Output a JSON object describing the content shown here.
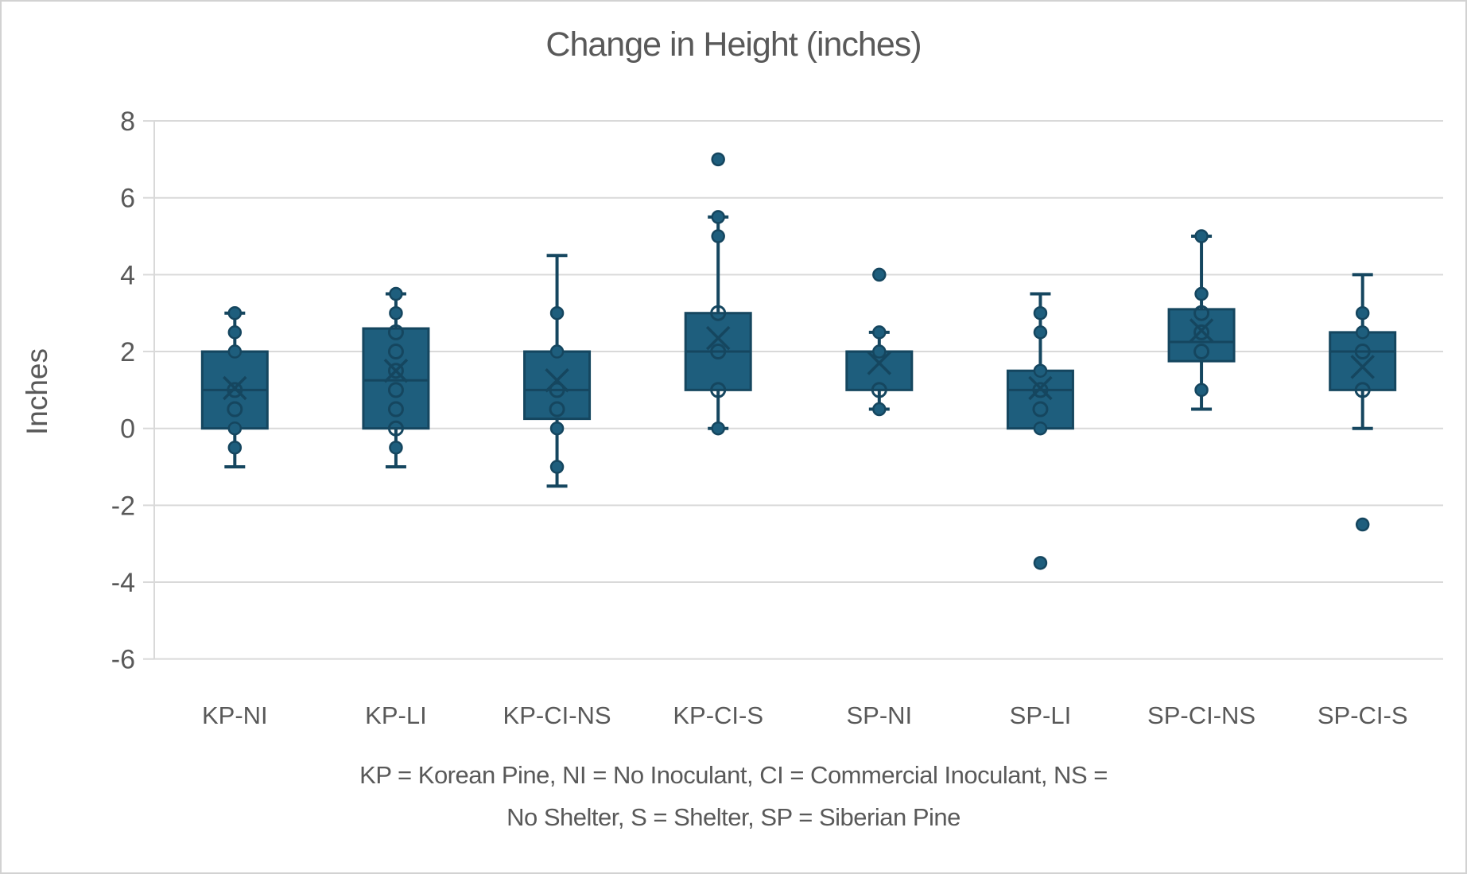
{
  "chart_data": {
    "type": "boxplot",
    "title": "Change in Height (inches)",
    "ylabel": "Inches",
    "y_ticks": [
      8,
      6,
      4,
      2,
      0,
      -2,
      -4,
      -6
    ],
    "ylim": [
      -7.3,
      8.8
    ],
    "grid": true,
    "legend": "none",
    "caption_lines": [
      "KP = Korean Pine, NI = No Inoculant, CI = Commercial Inoculant, NS =",
      "No Shelter, S = Shelter, SP = Siberian Pine"
    ],
    "boxes": [
      {
        "label": "KP-NI",
        "whisker_low": -1,
        "q1": 0,
        "median": 1,
        "q3": 2,
        "whisker_high": 3,
        "mean": 1.05,
        "points": [
          {
            "v": 3,
            "style": "filled"
          },
          {
            "v": 2.5,
            "style": "filled"
          },
          {
            "v": 2,
            "style": "filled"
          },
          {
            "v": 1,
            "style": "open"
          },
          {
            "v": 0.5,
            "style": "open"
          },
          {
            "v": 0,
            "style": "filled"
          },
          {
            "v": -0.5,
            "style": "filled"
          }
        ]
      },
      {
        "label": "KP-LI",
        "whisker_low": -1,
        "q1": 0,
        "median": 1.25,
        "q3": 2.6,
        "whisker_high": 3.5,
        "mean": 1.5,
        "points": [
          {
            "v": 3.5,
            "style": "filled"
          },
          {
            "v": 3,
            "style": "filled"
          },
          {
            "v": 2.5,
            "style": "open"
          },
          {
            "v": 2,
            "style": "open"
          },
          {
            "v": 1.5,
            "style": "open"
          },
          {
            "v": 1,
            "style": "open"
          },
          {
            "v": 0.5,
            "style": "open"
          },
          {
            "v": 0,
            "style": "open"
          },
          {
            "v": -0.5,
            "style": "filled"
          }
        ]
      },
      {
        "label": "KP-CI-NS",
        "whisker_low": -1.5,
        "q1": 0.25,
        "median": 1,
        "q3": 2,
        "whisker_high": 4.5,
        "mean": 1.25,
        "points": [
          {
            "v": 3,
            "style": "filled"
          },
          {
            "v": 2,
            "style": "filled"
          },
          {
            "v": 1,
            "style": "open"
          },
          {
            "v": 0.5,
            "style": "open"
          },
          {
            "v": 0,
            "style": "filled"
          },
          {
            "v": -1,
            "style": "filled"
          }
        ]
      },
      {
        "label": "KP-CI-S",
        "whisker_low": 0,
        "q1": 1,
        "median": 2,
        "q3": 3,
        "whisker_high": 5.5,
        "mean": 2.35,
        "points": [
          {
            "v": 7,
            "style": "filled"
          },
          {
            "v": 5.5,
            "style": "filled"
          },
          {
            "v": 5,
            "style": "filled"
          },
          {
            "v": 3,
            "style": "open"
          },
          {
            "v": 2,
            "style": "open"
          },
          {
            "v": 1,
            "style": "open"
          },
          {
            "v": 0,
            "style": "filled"
          }
        ]
      },
      {
        "label": "SP-NI",
        "whisker_low": 0.5,
        "q1": 1,
        "median": 2,
        "q3": 2,
        "whisker_high": 2.5,
        "mean": 1.7,
        "points": [
          {
            "v": 4,
            "style": "filled"
          },
          {
            "v": 2.5,
            "style": "filled"
          },
          {
            "v": 2,
            "style": "filled"
          },
          {
            "v": 1,
            "style": "open"
          },
          {
            "v": 0.5,
            "style": "filled"
          }
        ]
      },
      {
        "label": "SP-LI",
        "whisker_low": 0,
        "q1": 0,
        "median": 1,
        "q3": 1.5,
        "whisker_high": 3.5,
        "mean": 1.05,
        "points": [
          {
            "v": 3,
            "style": "filled"
          },
          {
            "v": 2.5,
            "style": "filled"
          },
          {
            "v": 1.5,
            "style": "filled"
          },
          {
            "v": 1,
            "style": "open"
          },
          {
            "v": 0.5,
            "style": "open"
          },
          {
            "v": 0,
            "style": "filled"
          },
          {
            "v": -3.5,
            "style": "filled"
          }
        ]
      },
      {
        "label": "SP-CI-NS",
        "whisker_low": 0.5,
        "q1": 1.75,
        "median": 2.25,
        "q3": 3.1,
        "whisker_high": 5,
        "mean": 2.55,
        "points": [
          {
            "v": 5,
            "style": "filled"
          },
          {
            "v": 3.5,
            "style": "filled"
          },
          {
            "v": 3,
            "style": "open"
          },
          {
            "v": 2.5,
            "style": "open"
          },
          {
            "v": 2,
            "style": "open"
          },
          {
            "v": 1,
            "style": "filled"
          }
        ]
      },
      {
        "label": "SP-CI-S",
        "whisker_low": 0,
        "q1": 1,
        "median": 2,
        "q3": 2.5,
        "whisker_high": 4,
        "mean": 1.6,
        "points": [
          {
            "v": 3,
            "style": "filled"
          },
          {
            "v": 2.5,
            "style": "filled"
          },
          {
            "v": 2,
            "style": "open"
          },
          {
            "v": 1,
            "style": "open"
          },
          {
            "v": -2.5,
            "style": "filled"
          }
        ]
      }
    ],
    "colors": {
      "box_fill": "#1e5e7d",
      "box_stroke": "#15465f",
      "gridline": "#d9d9d9",
      "text": "#595959",
      "background": "#ffffff"
    }
  }
}
